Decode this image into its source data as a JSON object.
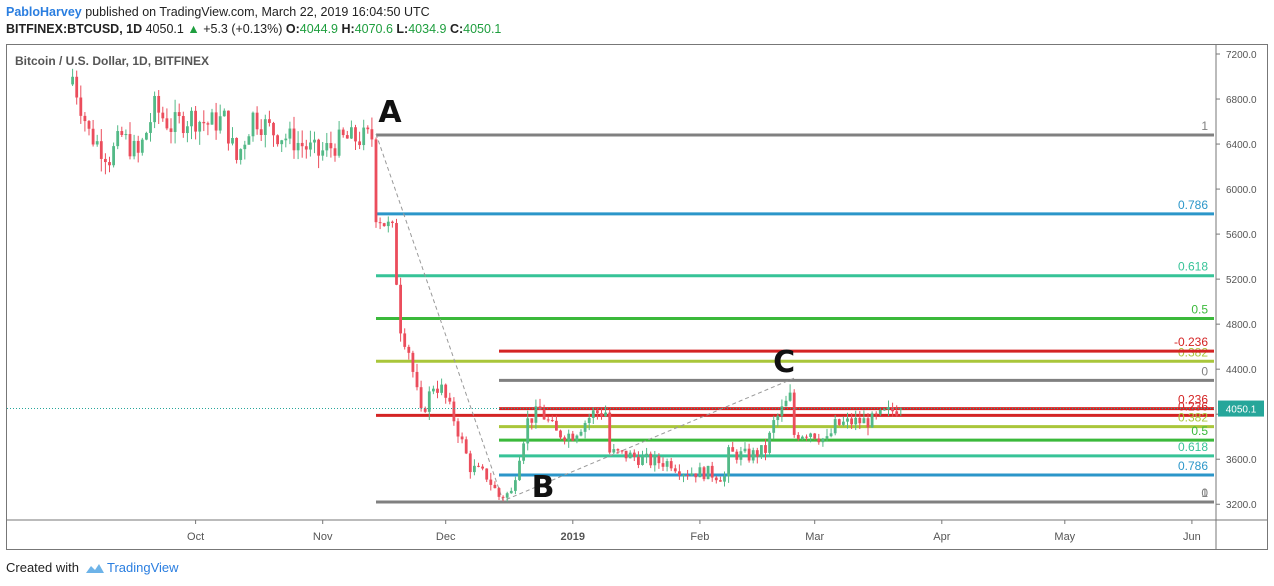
{
  "header": {
    "author": "PabloHarvey",
    "published_text": "published on TradingView.com, March 22, 2019 16:04:50 UTC",
    "symbol": "BITFINEX:BTCUSD, 1D",
    "last": "4050.1",
    "change_arrow": "▲",
    "change": "+5.3 (+0.13%)",
    "o_label": "O:",
    "o_value": "4044.9",
    "h_label": "H:",
    "h_value": "4070.6",
    "l_label": "L:",
    "l_value": "4034.9",
    "c_label": "C:",
    "c_value": "4050.1"
  },
  "footer": {
    "created_with": "Created with",
    "brand": "TradingView",
    "logo_icon": "tradingview-cloud-icon"
  },
  "chart_data": {
    "type": "candlestick",
    "title": "Bitcoin / U.S. Dollar, 1D, BITFINEX",
    "x_ticks": [
      "Oct",
      "Nov",
      "Dec",
      "2019",
      "Feb",
      "Mar",
      "Apr",
      "May",
      "Jun"
    ],
    "y_ticks": [
      3200,
      3600,
      4000,
      4400,
      4800,
      5200,
      5600,
      6000,
      6400,
      6800,
      7200
    ],
    "y_tick_labels": [
      "3200.0",
      "3600.0",
      "",
      "4400.0",
      "4800.0",
      "5200.0",
      "5600.0",
      "6000.0",
      "6400.0",
      "6800.0",
      "7200.0"
    ],
    "ylim": [
      3060,
      7280
    ],
    "last_price": 4050.1,
    "last_price_label": "4050.1",
    "colors": {
      "up": "#53b987",
      "down": "#eb4d5c",
      "price_line": "#26a69a"
    },
    "price_anchors": [
      [
        "2018-09-01",
        7000
      ],
      [
        "2018-09-05",
        6500
      ],
      [
        "2018-09-10",
        6280
      ],
      [
        "2018-09-13",
        6470
      ],
      [
        "2018-09-17",
        6300
      ],
      [
        "2018-09-21",
        6720
      ],
      [
        "2018-09-25",
        6560
      ],
      [
        "2018-09-30",
        6640
      ],
      [
        "2018-10-04",
        6580
      ],
      [
        "2018-10-08",
        6620
      ],
      [
        "2018-10-11",
        6260
      ],
      [
        "2018-10-15",
        6650
      ],
      [
        "2018-10-20",
        6510
      ],
      [
        "2018-10-25",
        6430
      ],
      [
        "2018-10-31",
        6310
      ],
      [
        "2018-11-06",
        6440
      ],
      [
        "2018-11-13",
        6460
      ],
      [
        "2018-11-14",
        5790
      ],
      [
        "2018-11-18",
        5620
      ],
      [
        "2018-11-20",
        4780
      ],
      [
        "2018-11-22",
        4570
      ],
      [
        "2018-11-25",
        3990
      ],
      [
        "2018-11-28",
        4260
      ],
      [
        "2018-11-30",
        4220
      ],
      [
        "2018-12-03",
        3960
      ],
      [
        "2018-12-07",
        3530
      ],
      [
        "2018-12-11",
        3450
      ],
      [
        "2018-12-14",
        3270
      ],
      [
        "2018-12-17",
        3300
      ],
      [
        "2018-12-19",
        3650
      ],
      [
        "2018-12-21",
        3940
      ],
      [
        "2018-12-24",
        4030
      ],
      [
        "2018-12-28",
        3830
      ],
      [
        "2019-01-01",
        3820
      ],
      [
        "2019-01-06",
        4010
      ],
      [
        "2019-01-09",
        4020
      ],
      [
        "2019-01-10",
        3660
      ],
      [
        "2019-01-15",
        3630
      ],
      [
        "2019-01-20",
        3580
      ],
      [
        "2019-01-25",
        3570
      ],
      [
        "2019-01-28",
        3490
      ],
      [
        "2019-02-03",
        3480
      ],
      [
        "2019-02-07",
        3440
      ],
      [
        "2019-02-08",
        3650
      ],
      [
        "2019-02-13",
        3630
      ],
      [
        "2019-02-17",
        3680
      ],
      [
        "2019-02-19",
        3920
      ],
      [
        "2019-02-23",
        4150
      ],
      [
        "2019-02-24",
        3820
      ],
      [
        "2019-02-28",
        3850
      ],
      [
        "2019-03-04",
        3760
      ],
      [
        "2019-03-06",
        3900
      ],
      [
        "2019-03-10",
        3930
      ],
      [
        "2019-03-15",
        3940
      ],
      [
        "2019-03-18",
        4000
      ],
      [
        "2019-03-21",
        4044.9
      ],
      [
        "2019-03-22",
        4050.1
      ]
    ],
    "points": [
      {
        "label": "A",
        "date": "2018-11-14",
        "price": 6490
      },
      {
        "label": "B",
        "date": "2018-12-15",
        "price": 3230
      },
      {
        "label": "C",
        "date": "2019-02-24",
        "price": 4320
      }
    ],
    "fib_retracement": {
      "start": "2018-11-14",
      "levels": [
        {
          "label": "1",
          "value": 6480,
          "color": "#808080"
        },
        {
          "label": "0.786",
          "value": 5780,
          "color": "#2b96c9"
        },
        {
          "label": "0.618",
          "value": 5230,
          "color": "#37c397"
        },
        {
          "label": "0.5",
          "value": 4850,
          "color": "#3bb93b"
        },
        {
          "label": "0.382",
          "value": 4470,
          "color": "#a9c63a"
        },
        {
          "label": "0.236",
          "value": 3990,
          "color": "#d42424"
        },
        {
          "label": "0",
          "value": 3220,
          "color": "#808080"
        }
      ]
    },
    "fib_extension": {
      "start": "2018-12-14",
      "levels": [
        {
          "label": "-0.236",
          "value": 4560,
          "color": "#d42424"
        },
        {
          "label": "0",
          "value": 4300,
          "color": "#808080"
        },
        {
          "label": "0.236",
          "value": 4050,
          "color": "#d42424"
        },
        {
          "label": "0.382",
          "value": 3890,
          "color": "#a9c63a"
        },
        {
          "label": "0.5",
          "value": 3770,
          "color": "#3bb93b"
        },
        {
          "label": "0.618",
          "value": 3630,
          "color": "#37c397"
        },
        {
          "label": "0.786",
          "value": 3460,
          "color": "#2b96c9"
        },
        {
          "label": "1",
          "value": 3220,
          "color": "#808080"
        }
      ]
    }
  }
}
